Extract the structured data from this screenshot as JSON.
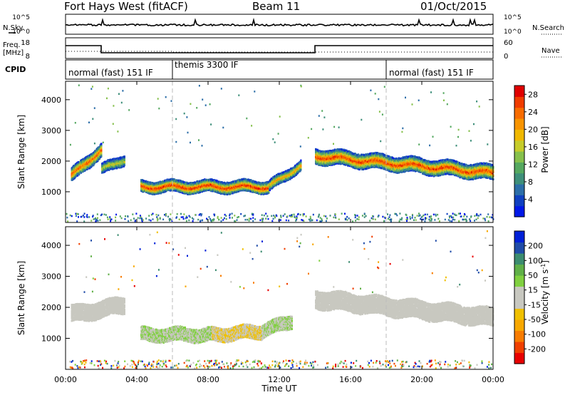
{
  "header": {
    "station": "Fort Hays West (fitACF)",
    "beam": "Beam 11",
    "date": "01/Oct/2015"
  },
  "top_panels": {
    "nsky_label": "N.Sky",
    "nsearch_label": "N.Search",
    "nsky_ticks": [
      "10^5",
      "10^0"
    ],
    "nsearch_ticks": [
      "10^5",
      "10^0"
    ],
    "freq_label_1": "Freq.",
    "freq_label_2": "[MHz]",
    "freq_ticks": [
      "18",
      "8"
    ],
    "nave_label": "Nave",
    "nave_ticks": [
      "60",
      "0"
    ],
    "cpid_label": "CPID",
    "cpid_segments": [
      {
        "label": "normal (fast) 151 IF",
        "start_h": 0,
        "end_h": 6
      },
      {
        "label": "themis 3300 IF",
        "start_h": 6,
        "end_h": 18
      },
      {
        "label": "normal (fast) 151 IF",
        "start_h": 18,
        "end_h": 24
      }
    ]
  },
  "colors": {
    "power_scale": [
      "#0018e8",
      "#1040c0",
      "#2c6ea8",
      "#3e8f7a",
      "#55a860",
      "#86c04c",
      "#c6cc2a",
      "#f0b800",
      "#f89400",
      "#f86c00",
      "#f03c00",
      "#e00000"
    ],
    "velocity_scale": [
      "#e80000",
      "#f04000",
      "#f87c00",
      "#f8a800",
      "#f0c000",
      "#c8c8c0",
      "#c8c8c0",
      "#80d040",
      "#60b048",
      "#3c8c70",
      "#204ca8",
      "#0020d8"
    ],
    "ground_scatter": "#c8c8c0"
  },
  "chart_data": [
    {
      "type": "heatmap",
      "name": "power",
      "title": "",
      "xlabel": "Time UT",
      "ylabel": "Slant Range [km]",
      "xlim_h": [
        0,
        24
      ],
      "ylim_km": [
        0,
        4600
      ],
      "x_tick_labels": [
        "00:00",
        "04:00",
        "08:00",
        "12:00",
        "16:00",
        "20:00",
        "00:00"
      ],
      "y_tick_labels": [
        "1000",
        "2000",
        "3000",
        "4000"
      ],
      "colorbar": {
        "label": "Power [dB]",
        "ticks": [
          "4",
          "8",
          "12",
          "16",
          "20",
          "24",
          "28"
        ],
        "range": [
          0,
          30
        ]
      },
      "echo_bands": [
        {
          "t_start_h": 0.3,
          "t_end_h": 2.0,
          "range_km_start": 1550,
          "range_km_end": 2400,
          "width_km": 400,
          "peak_db": 26
        },
        {
          "t_start_h": 2.0,
          "t_end_h": 3.3,
          "range_km_start": 1750,
          "range_km_end": 2100,
          "width_km": 300,
          "peak_db": 18
        },
        {
          "t_start_h": 4.2,
          "t_end_h": 11.4,
          "range_km_start": 1200,
          "range_km_end": 1200,
          "width_km": 350,
          "peak_db": 28
        },
        {
          "t_start_h": 11.4,
          "t_end_h": 13.2,
          "range_km_start": 1200,
          "range_km_end": 1900,
          "width_km": 300,
          "peak_db": 22
        },
        {
          "t_start_h": 14.0,
          "t_end_h": 24.0,
          "range_km_start": 2200,
          "range_km_end": 1650,
          "width_km": 450,
          "peak_db": 27
        }
      ]
    },
    {
      "type": "heatmap",
      "name": "velocity",
      "title": "",
      "xlabel": "Time UT",
      "ylabel": "Slant Range [km]",
      "xlim_h": [
        0,
        24
      ],
      "ylim_km": [
        0,
        4600
      ],
      "x_tick_labels": [
        "00:00",
        "04:00",
        "08:00",
        "12:00",
        "16:00",
        "20:00",
        "00:00"
      ],
      "y_tick_labels": [
        "1000",
        "2000",
        "3000",
        "4000"
      ],
      "colorbar": {
        "label": "Velocity [m s^-1]",
        "ticks": [
          "200",
          "100",
          "50",
          "15",
          "-15",
          "-50",
          "-100",
          "-200"
        ],
        "range": [
          -250,
          250
        ]
      },
      "echo_bands": [
        {
          "t_start_h": 0.3,
          "t_end_h": 3.3,
          "range_km_start": 1800,
          "range_km_end": 2100,
          "width_km": 500,
          "velocity": 0
        },
        {
          "t_start_h": 4.2,
          "t_end_h": 8.2,
          "range_km_start": 1150,
          "range_km_end": 1150,
          "width_km": 400,
          "velocity": 40
        },
        {
          "t_start_h": 8.2,
          "t_end_h": 11.0,
          "range_km_start": 1150,
          "range_km_end": 1250,
          "width_km": 400,
          "velocity": -40
        },
        {
          "t_start_h": 11.0,
          "t_end_h": 12.7,
          "range_km_start": 1250,
          "range_km_end": 1600,
          "width_km": 400,
          "velocity": 40
        },
        {
          "t_start_h": 14.0,
          "t_end_h": 24.0,
          "range_km_start": 2300,
          "range_km_end": 1700,
          "width_km": 550,
          "velocity": 0
        }
      ]
    }
  ]
}
